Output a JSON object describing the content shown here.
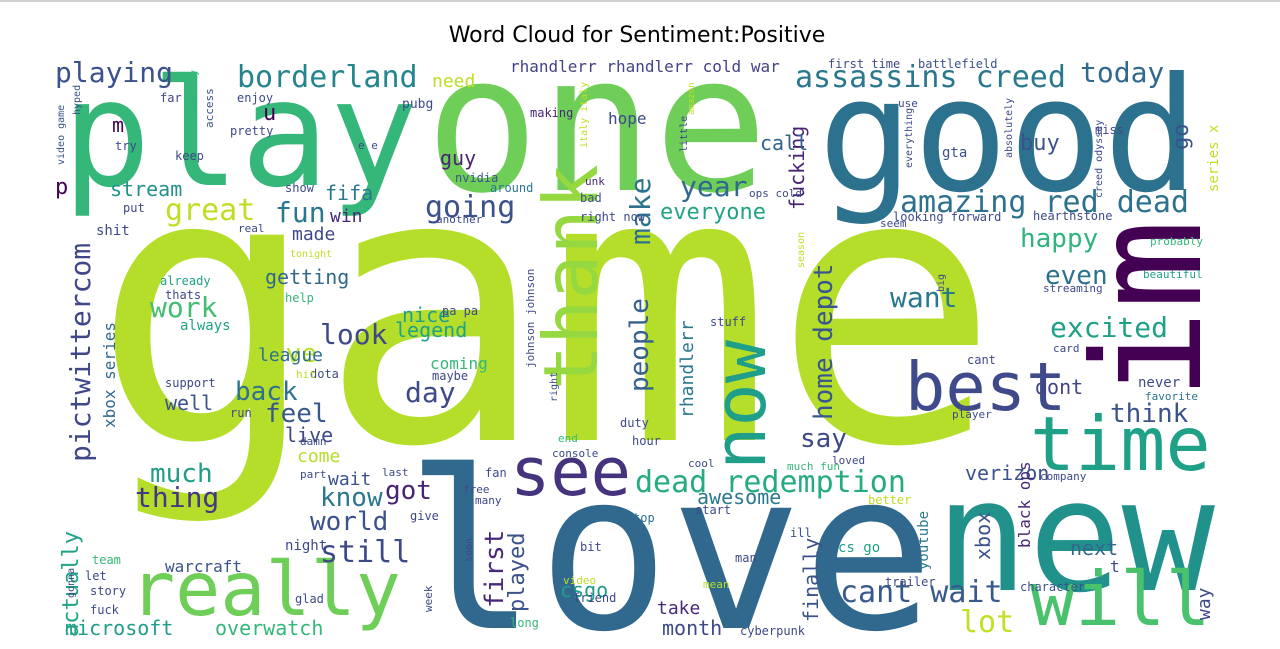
{
  "chart_data": {
    "type": "wordcloud",
    "title": "Word Cloud for Sentiment:Positive",
    "words": [
      "game",
      "love",
      "play",
      "one",
      "good",
      "im",
      "new",
      "really",
      "will",
      "time",
      "best",
      "see",
      "now",
      "thank",
      "assassins creed",
      "today",
      "borderland",
      "playing",
      "rhandlerr rhandlerr cold war",
      "first time",
      "battlefield",
      "amazing red dead",
      "great",
      "fun",
      "going",
      "year",
      "everyone",
      "stream",
      "fifa",
      "win",
      "happy",
      "home depot",
      "pictwittercom",
      "dead redemption",
      "cant wait",
      "lot",
      "verizon",
      "still",
      "world",
      "got",
      "know",
      "thing",
      "much",
      "feel",
      "back",
      "day",
      "look",
      "work",
      "ive",
      "getting",
      "nice",
      "legend",
      "league",
      "well",
      "live",
      "wait",
      "come",
      "people",
      "awesome",
      "say",
      "want",
      "even",
      "excited",
      "think",
      "dont",
      "never",
      "favorite",
      "next",
      "way",
      "xbox",
      "black ops",
      "youtube",
      "finally",
      "month",
      "take",
      "cyberpunk",
      "microsoft",
      "overwatch",
      "actually",
      "warcraft",
      "csgo",
      "played",
      "first",
      "make",
      "fucking",
      "call",
      "buy",
      "go",
      "gta",
      "series x",
      "hope",
      "guy",
      "need",
      "made",
      "m",
      "p",
      "u",
      "rhandlerr",
      "xbox series",
      "nvidia",
      "pubg",
      "making",
      "bad",
      "right now",
      "unk",
      "around",
      "italy italy",
      "cs go",
      "ill",
      "start",
      "top",
      "man",
      "mean",
      "trailer",
      "character",
      "company",
      "coming",
      "maybe",
      "dota",
      "hit",
      "help",
      "stuff",
      "already",
      "thats",
      "always",
      "shit",
      "put",
      "show",
      "far",
      "enjoy",
      "pretty",
      "keep",
      "try",
      "access",
      "hyped",
      "video game",
      "literally",
      "support",
      "run",
      "damn",
      "console",
      "end",
      "hour",
      "duty",
      "right",
      "loved",
      "much fun",
      "cool",
      "fan",
      "free",
      "many",
      "give",
      "bit",
      "soon",
      "friend",
      "video",
      "week",
      "long",
      "night",
      "glad",
      "last",
      "part",
      "team",
      "let",
      "story",
      "fuck",
      "gonna",
      "johnson johnson",
      "pa pa",
      "real",
      "season",
      "better",
      "probably",
      "beautiful",
      "streaming",
      "card",
      "cant",
      "player",
      "big",
      "looking forward",
      "hearthstone",
      "seem",
      "ops cold",
      "another",
      "everything",
      "use",
      "miss",
      "absolutely",
      "creed odyssey",
      "little",
      "amazon",
      "e e",
      "tonight",
      "t"
    ]
  }
}
